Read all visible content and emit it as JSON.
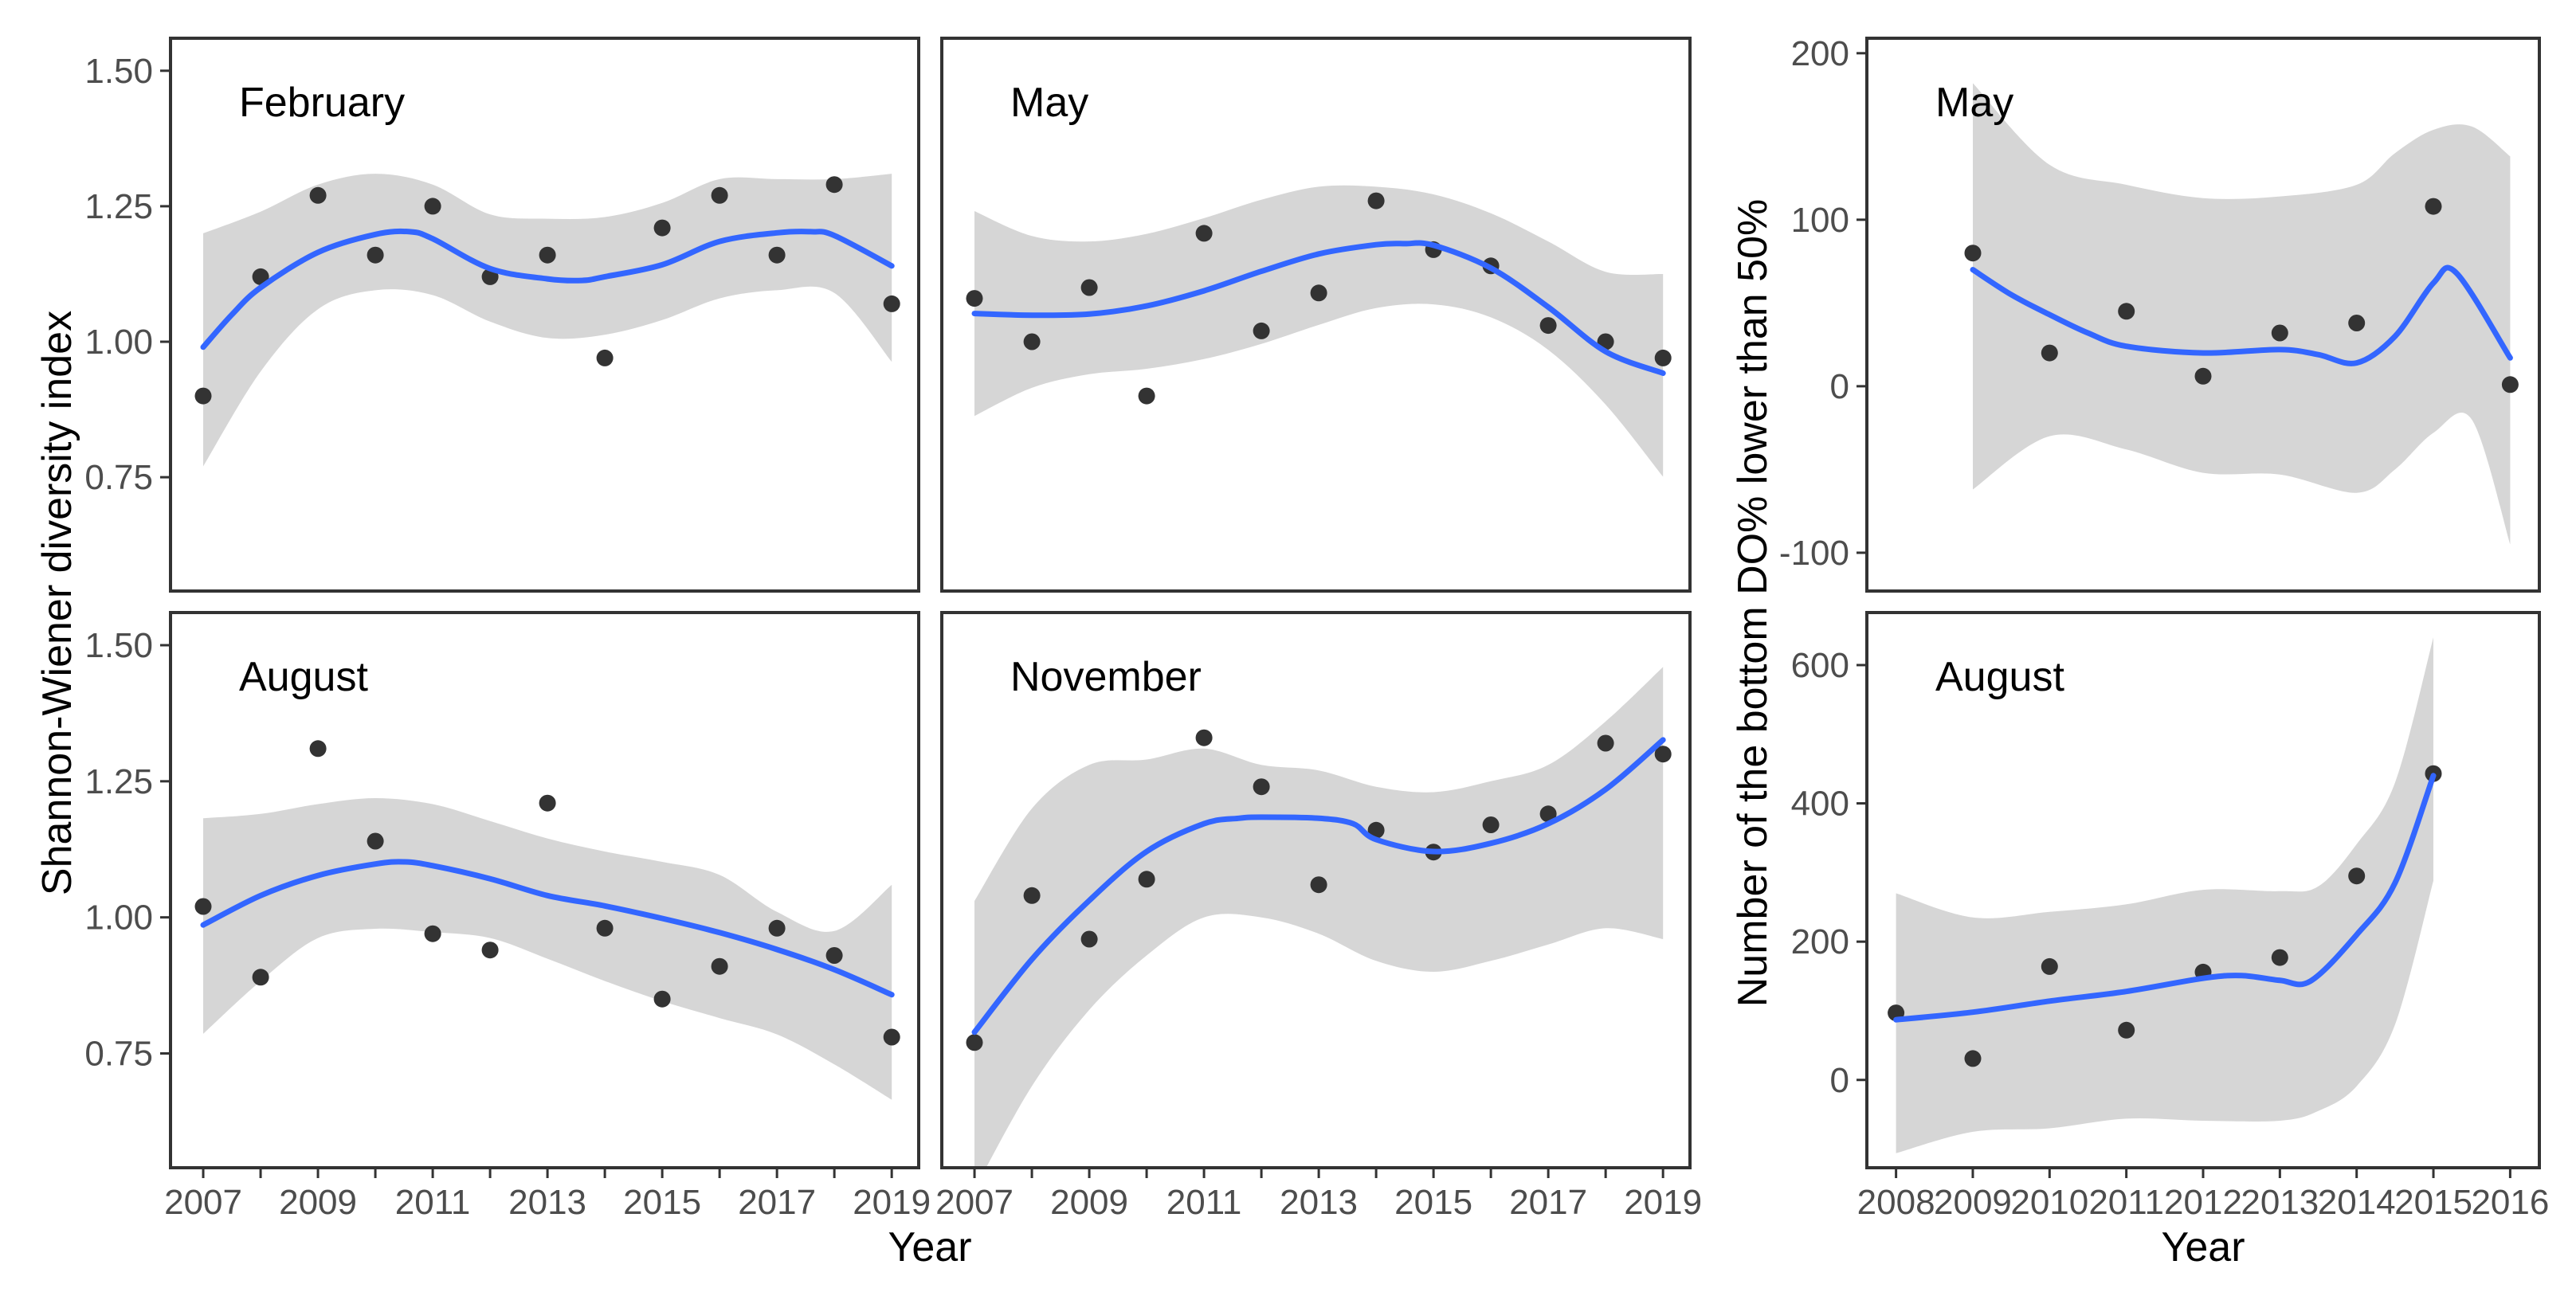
{
  "figure": {
    "left_y_axis_title": "Shannon-Wiener diversity index",
    "right_y_axis_title": "Number of the bottom DO% lower than 50%",
    "x_axis_title": "Year",
    "background": "#ffffff",
    "colors": {
      "smooth_line": "#3366FF",
      "ribbon": "#D6D6D6",
      "point": "#333333",
      "panel_border": "#333333",
      "tick": "#333333",
      "tick_label": "#4D4D4D",
      "panel_label": "#000000"
    }
  },
  "chart_data": [
    {
      "type": "scatter",
      "panel": "february",
      "slot": "left-top",
      "label": "February",
      "xlabel": "Year",
      "ylabel": "Shannon-Wiener diversity index",
      "x_domain": [
        2006.43,
        2019.47
      ],
      "y_domain": [
        0.54,
        1.56
      ],
      "grid": false,
      "legend": "none",
      "x": [
        2007,
        2008,
        2009,
        2010,
        2011,
        2012,
        2013,
        2014,
        2015,
        2016,
        2017,
        2018,
        2019
      ],
      "y": [
        0.9,
        1.12,
        1.27,
        1.16,
        1.25,
        1.12,
        1.16,
        0.97,
        1.21,
        1.27,
        1.16,
        1.29,
        1.07
      ],
      "smooth": {
        "x": [
          2007,
          2007.5,
          2008,
          2009,
          2010,
          2010.6,
          2011,
          2012,
          2013,
          2013.6,
          2014,
          2015,
          2016,
          2017,
          2017.6,
          2018,
          2019
        ],
        "y": [
          0.99,
          1.05,
          1.1,
          1.165,
          1.198,
          1.203,
          1.19,
          1.135,
          1.116,
          1.113,
          1.12,
          1.142,
          1.185,
          1.201,
          1.203,
          1.196,
          1.14
        ]
      },
      "ribbon": {
        "x": [
          2007,
          2008,
          2009,
          2010,
          2011,
          2012,
          2013,
          2014,
          2015,
          2016,
          2017,
          2018,
          2019
        ],
        "hi": [
          1.2,
          1.24,
          1.29,
          1.31,
          1.29,
          1.235,
          1.227,
          1.23,
          1.256,
          1.3,
          1.3,
          1.3,
          1.31
        ],
        "lo": [
          0.77,
          0.945,
          1.06,
          1.095,
          1.086,
          1.037,
          1.007,
          1.013,
          1.04,
          1.08,
          1.095,
          1.09,
          0.963
        ]
      },
      "y_ticks": {
        "show": true,
        "values": [
          1.5,
          1.25,
          1.0,
          0.75
        ],
        "labels": [
          "1.50",
          "1.25",
          "1.00",
          "0.75"
        ]
      },
      "x_ticks": {
        "show": false,
        "values": [],
        "labels": []
      }
    },
    {
      "type": "scatter",
      "panel": "may",
      "slot": "mid-top",
      "label": "May",
      "xlabel": "Year",
      "ylabel": "Shannon-Wiener diversity index",
      "x_domain": [
        2006.43,
        2019.47
      ],
      "y_domain": [
        0.54,
        1.56
      ],
      "grid": false,
      "legend": "none",
      "x": [
        2007,
        2008,
        2009,
        2010,
        2011,
        2012,
        2013,
        2014,
        2015,
        2016,
        2017,
        2018,
        2019
      ],
      "y": [
        1.08,
        1.0,
        1.1,
        0.9,
        1.2,
        1.02,
        1.09,
        1.26,
        1.17,
        1.14,
        1.03,
        1.0,
        0.97
      ],
      "smooth": {
        "x": [
          2007,
          2008,
          2009,
          2010,
          2011,
          2012,
          2013,
          2014,
          2014.5,
          2015,
          2016,
          2017,
          2018,
          2019
        ],
        "y": [
          1.052,
          1.049,
          1.051,
          1.066,
          1.094,
          1.13,
          1.162,
          1.179,
          1.181,
          1.178,
          1.136,
          1.064,
          0.982,
          0.942
        ]
      },
      "ribbon": {
        "x": [
          2007,
          2008,
          2009,
          2010,
          2011,
          2012,
          2013,
          2014,
          2015,
          2016,
          2017,
          2018,
          2019
        ],
        "hi": [
          1.241,
          1.195,
          1.185,
          1.199,
          1.228,
          1.262,
          1.286,
          1.286,
          1.272,
          1.237,
          1.185,
          1.129,
          1.125
        ],
        "lo": [
          0.863,
          0.915,
          0.94,
          0.95,
          0.968,
          0.996,
          1.031,
          1.062,
          1.069,
          1.045,
          0.985,
          0.884,
          0.751
        ]
      },
      "y_ticks": {
        "show": false,
        "values": [],
        "labels": []
      },
      "x_ticks": {
        "show": false,
        "values": [],
        "labels": []
      }
    },
    {
      "type": "scatter",
      "panel": "august",
      "slot": "left-bottom",
      "label": "August",
      "xlabel": "Year",
      "ylabel": "Shannon-Wiener diversity index",
      "x_domain": [
        2006.43,
        2019.47
      ],
      "y_domain": [
        0.54,
        1.56
      ],
      "grid": false,
      "legend": "none",
      "x": [
        2007,
        2008,
        2009,
        2010,
        2011,
        2012,
        2013,
        2014,
        2015,
        2016,
        2017,
        2018,
        2019
      ],
      "y": [
        1.02,
        0.89,
        1.31,
        1.14,
        0.97,
        0.94,
        1.21,
        0.98,
        0.85,
        0.91,
        0.98,
        0.93,
        0.78
      ],
      "smooth": {
        "x": [
          2007,
          2008,
          2009,
          2010,
          2010.5,
          2011,
          2012,
          2013,
          2014,
          2015,
          2016,
          2017,
          2018,
          2019
        ],
        "y": [
          0.986,
          1.04,
          1.077,
          1.098,
          1.102,
          1.095,
          1.071,
          1.04,
          1.021,
          0.998,
          0.972,
          0.941,
          0.904,
          0.858
        ]
      },
      "ribbon": {
        "x": [
          2007,
          2008,
          2009,
          2010,
          2011,
          2012,
          2013,
          2014,
          2015,
          2016,
          2017,
          2018,
          2019
        ],
        "hi": [
          1.182,
          1.19,
          1.208,
          1.219,
          1.208,
          1.177,
          1.145,
          1.121,
          1.102,
          1.078,
          1.01,
          0.975,
          1.06
        ],
        "lo": [
          0.786,
          0.883,
          0.962,
          0.979,
          0.973,
          0.962,
          0.924,
          0.883,
          0.846,
          0.815,
          0.785,
          0.73,
          0.665
        ]
      },
      "y_ticks": {
        "show": true,
        "values": [
          1.5,
          1.25,
          1.0,
          0.75
        ],
        "labels": [
          "1.50",
          "1.25",
          "1.00",
          "0.75"
        ]
      },
      "x_ticks": {
        "show": true,
        "values": [
          2007,
          2008,
          2009,
          2010,
          2011,
          2012,
          2013,
          2014,
          2015,
          2016,
          2017,
          2018,
          2019
        ],
        "labels": [
          "2007",
          "",
          "2009",
          "",
          "2011",
          "",
          "2013",
          "",
          "2015",
          "",
          "2017",
          "",
          "2019"
        ]
      }
    },
    {
      "type": "scatter",
      "panel": "november",
      "slot": "mid-bottom",
      "label": "November",
      "xlabel": "Year",
      "ylabel": "Shannon-Wiener diversity index",
      "x_domain": [
        2006.43,
        2019.47
      ],
      "y_domain": [
        0.54,
        1.56
      ],
      "grid": false,
      "legend": "none",
      "x": [
        2007,
        2008,
        2009,
        2010,
        2011,
        2012,
        2013,
        2014,
        2015,
        2016,
        2017,
        2018,
        2019
      ],
      "y": [
        0.77,
        1.04,
        0.96,
        1.07,
        1.33,
        1.24,
        1.06,
        1.16,
        1.12,
        1.17,
        1.19,
        1.32,
        1.3
      ],
      "smooth": {
        "x": [
          2007,
          2008,
          2009,
          2010,
          2011,
          2011.6,
          2012,
          2013,
          2013.6,
          2014,
          2015,
          2016,
          2017,
          2018,
          2019
        ],
        "y": [
          0.789,
          0.923,
          1.031,
          1.121,
          1.172,
          1.182,
          1.184,
          1.182,
          1.172,
          1.143,
          1.121,
          1.136,
          1.172,
          1.235,
          1.326
        ]
      },
      "ribbon": {
        "x": [
          2007,
          2008,
          2009,
          2010,
          2011,
          2012,
          2013,
          2014,
          2015,
          2016,
          2017,
          2018,
          2019
        ],
        "hi": [
          1.03,
          1.2,
          1.28,
          1.29,
          1.31,
          1.28,
          1.27,
          1.24,
          1.23,
          1.25,
          1.28,
          1.36,
          1.46
        ],
        "lo": [
          0.5,
          0.69,
          0.83,
          0.93,
          1.0,
          1.0,
          0.97,
          0.92,
          0.9,
          0.92,
          0.95,
          0.98,
          0.96
        ]
      },
      "y_ticks": {
        "show": false,
        "values": [],
        "labels": []
      },
      "x_ticks": {
        "show": true,
        "values": [
          2007,
          2008,
          2009,
          2010,
          2011,
          2012,
          2013,
          2014,
          2015,
          2016,
          2017,
          2018,
          2019
        ],
        "labels": [
          "2007",
          "",
          "2009",
          "",
          "2011",
          "",
          "2013",
          "",
          "2015",
          "",
          "2017",
          "",
          "2019"
        ]
      }
    },
    {
      "type": "scatter",
      "panel": "may-do",
      "slot": "right-top",
      "label": "May",
      "xlabel": "Year",
      "ylabel": "Number of the bottom DO% lower than 50%",
      "x_domain": [
        2007.62,
        2016.38
      ],
      "y_domain": [
        -123,
        209
      ],
      "grid": false,
      "legend": "none",
      "x": [
        2009,
        2010,
        2011,
        2012,
        2013,
        2014,
        2015,
        2016
      ],
      "y": [
        80,
        20,
        45,
        6,
        32,
        38,
        108,
        1
      ],
      "smooth": {
        "x": [
          2009,
          2009.5,
          2010,
          2010.5,
          2011,
          2012,
          2013,
          2013.5,
          2014,
          2014.5,
          2015,
          2015.3,
          2016
        ],
        "y": [
          70,
          55,
          43,
          32,
          24,
          20,
          22,
          19,
          14,
          30,
          62,
          68,
          17
        ]
      },
      "ribbon": {
        "x": [
          2009,
          2010,
          2011,
          2012,
          2013,
          2014,
          2014.5,
          2015,
          2015.5,
          2016
        ],
        "hi": [
          182,
          133,
          121,
          113,
          114,
          121,
          140,
          154,
          156,
          138
        ],
        "lo": [
          -62,
          -30,
          -38,
          -52,
          -53,
          -64,
          -50,
          -28,
          -20,
          -95
        ]
      },
      "y_ticks": {
        "show": true,
        "values": [
          200,
          100,
          0,
          -100
        ],
        "labels": [
          "200",
          "100",
          "0",
          "-100"
        ]
      },
      "x_ticks": {
        "show": false,
        "values": [],
        "labels": []
      }
    },
    {
      "type": "scatter",
      "panel": "august-do",
      "slot": "right-bottom",
      "label": "August",
      "xlabel": "Year",
      "ylabel": "Number of the bottom DO% lower than 50%",
      "x_domain": [
        2007.62,
        2016.38
      ],
      "y_domain": [
        -127,
        676
      ],
      "grid": false,
      "legend": "none",
      "x": [
        2008,
        2009,
        2010,
        2011,
        2012,
        2013,
        2014,
        2015
      ],
      "y": [
        97,
        31,
        164,
        72,
        156,
        177,
        295,
        443
      ],
      "smooth": {
        "x": [
          2008,
          2009,
          2010,
          2011,
          2012,
          2012.5,
          2013,
          2013.4,
          2014,
          2014.5,
          2015
        ],
        "y": [
          87,
          98,
          114,
          128,
          147,
          151,
          144,
          143,
          210,
          285,
          440
        ]
      },
      "ribbon": {
        "x": [
          2008,
          2009,
          2010,
          2011,
          2012,
          2013,
          2013.5,
          2014,
          2014.5,
          2015
        ],
        "hi": [
          270,
          235,
          243,
          254,
          275,
          273,
          280,
          341,
          430,
          640
        ],
        "lo": [
          -106,
          -75,
          -70,
          -56,
          -59,
          -59,
          -45,
          -9,
          80,
          288
        ]
      },
      "y_ticks": {
        "show": true,
        "values": [
          600,
          400,
          200,
          0
        ],
        "labels": [
          "600",
          "400",
          "200",
          "0"
        ]
      },
      "x_ticks": {
        "show": true,
        "values": [
          2008,
          2009,
          2010,
          2011,
          2012,
          2013,
          2014,
          2015,
          2016
        ],
        "labels": [
          "2008",
          "2009",
          "2010",
          "2011",
          "2012",
          "2013",
          "2014",
          "2015",
          "2016"
        ]
      }
    }
  ]
}
